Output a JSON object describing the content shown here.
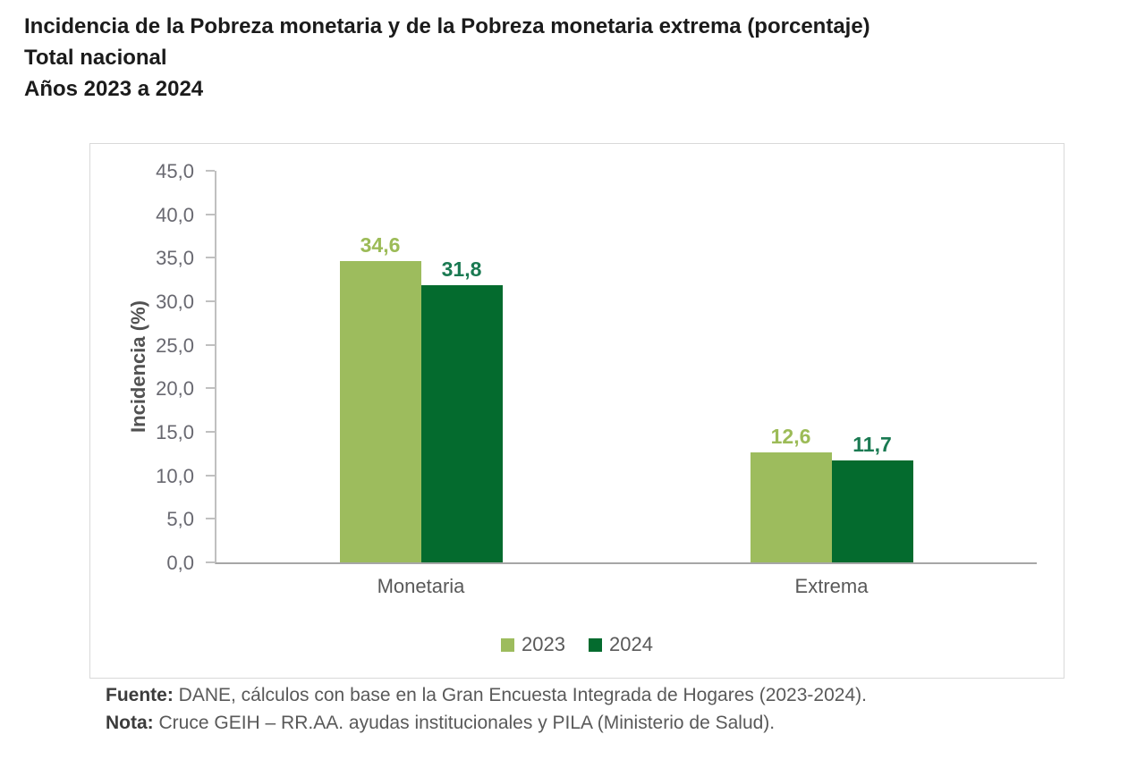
{
  "page": {
    "title_lines": [
      "Incidencia de la Pobreza monetaria y de la Pobreza monetaria extrema (porcentaje)",
      "Total nacional",
      "Años 2023 a 2024"
    ]
  },
  "chart_data": {
    "type": "bar",
    "categories": [
      "Monetaria",
      "Extrema"
    ],
    "series": [
      {
        "name": "2023",
        "values": [
          34.6,
          12.6
        ],
        "labels": [
          "34,6",
          "12,6"
        ],
        "color": "#9dbc5d",
        "label_color": "#9cbb57"
      },
      {
        "name": "2024",
        "values": [
          31.8,
          11.7
        ],
        "labels": [
          "31,8",
          "11,7"
        ],
        "color": "#046b2e",
        "label_color": "#1a7a52"
      }
    ],
    "title": "Incidencia de la Pobreza monetaria y de la Pobreza monetaria extrema (porcentaje)",
    "xlabel": "",
    "ylabel": "Incidencia (%)",
    "ylim": [
      0,
      45
    ],
    "ytick_step": 5,
    "yticks": [
      "45,0",
      "40,0",
      "35,0",
      "30,0",
      "25,0",
      "20,0",
      "15,0",
      "10,0",
      "5,0",
      "0,0"
    ],
    "grid": false,
    "legend_position": "bottom"
  },
  "footer": {
    "fuente_label": "Fuente:",
    "fuente_text": " DANE, cálculos con base en la Gran Encuesta Integrada de Hogares (2023-2024).",
    "nota_label": "Nota:",
    "nota_text": " Cruce GEIH – RR.AA. ayudas institucionales y PILA (Ministerio de Salud)."
  }
}
